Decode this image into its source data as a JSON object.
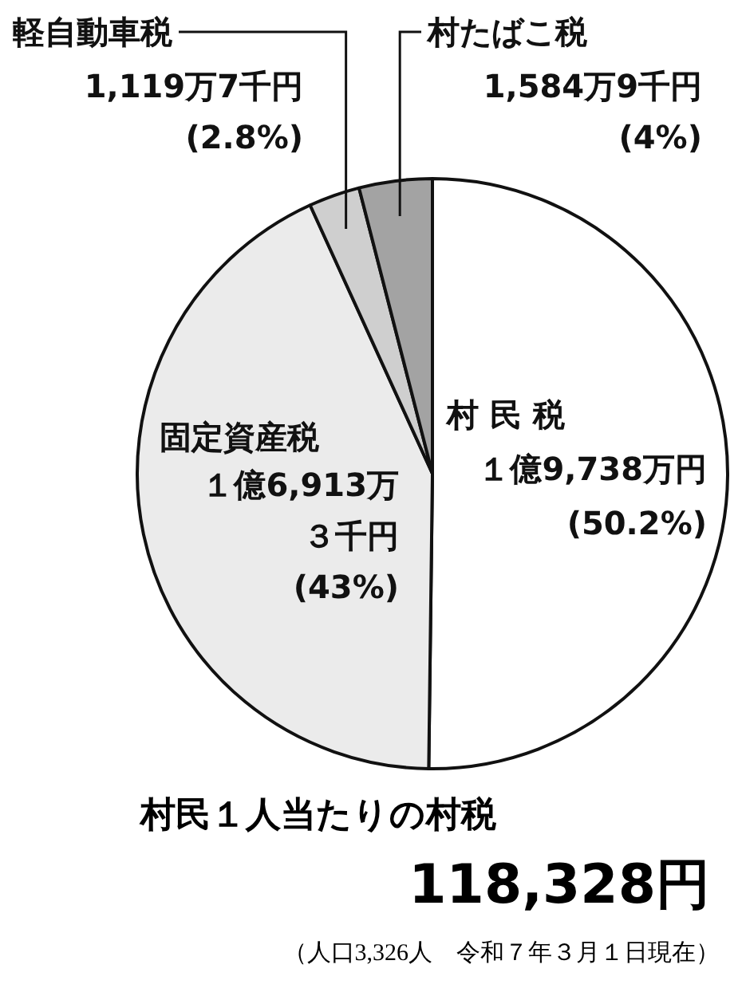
{
  "chart_data": {
    "type": "pie",
    "title": "村民１人当たりの村税",
    "subtitle": "118,328円",
    "categories": [
      "村 民 税",
      "固定資産税",
      "軽自動車税",
      "村たばこ税"
    ],
    "values": [
      50.2,
      43,
      2.8,
      4
    ],
    "colors": [
      "#ffffff",
      "#ebebeb",
      "#cfcfcf",
      "#a3a3a3"
    ],
    "value_labels": [
      "１億9,738万円(50.2%)",
      "１億6,913万３千円(43%)",
      "1,119万7千円(2.8%)",
      "1,584万9千円(4%)"
    ],
    "annotations": [
      "（人口3,326人　令和７年３月１日現在）"
    ],
    "legend": false
  }
}
